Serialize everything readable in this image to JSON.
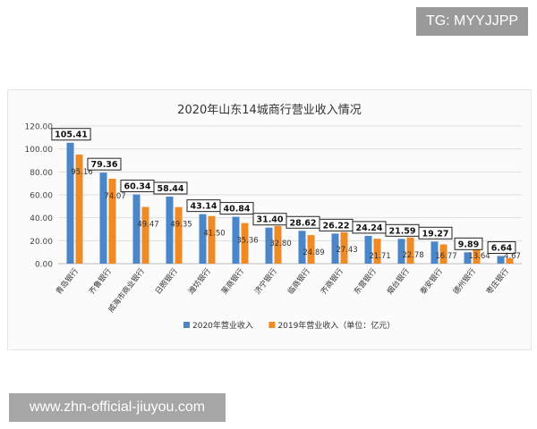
{
  "watermark_top": "TG: MYYJJPP",
  "watermark_bottom": "www.zhn-official-jiuyou.com",
  "chart_data": {
    "type": "bar",
    "title": "2020年山东14城商行营业收入情况",
    "categories": [
      "青岛银行",
      "齐鲁银行",
      "威海市商业银行",
      "日照银行",
      "潍坊银行",
      "莱商银行",
      "济宁银行",
      "临商银行",
      "齐商银行",
      "东营银行",
      "烟台银行",
      "泰安银行",
      "德州银行",
      "枣庄银行"
    ],
    "series": [
      {
        "name": "2020年营业收入",
        "color": "#4a86c8",
        "values": [
          105.41,
          79.36,
          60.34,
          58.44,
          43.14,
          40.84,
          31.4,
          28.62,
          26.22,
          24.24,
          21.59,
          19.27,
          9.89,
          6.64
        ],
        "labels": [
          "105.41",
          "79.36",
          "60.34",
          "58.44",
          "43.14",
          "40.84",
          "31.40",
          "28.62",
          "26.22",
          "24.24",
          "21.59",
          "19.27",
          "9.89",
          "6.64"
        ]
      },
      {
        "name": "2019年营业收入（单位：亿元）",
        "color": "#f08a24",
        "values": [
          95.16,
          74.07,
          49.47,
          49.35,
          41.5,
          35.36,
          32.8,
          24.89,
          27.43,
          21.71,
          22.78,
          16.77,
          13.64,
          4.67
        ],
        "labels": [
          "95.16",
          "74.07",
          "49.47",
          "49.35",
          "41.50",
          "35.36",
          "32.80",
          "24.89",
          "27.43",
          "21.71",
          "22.78",
          "16.77",
          "13.64",
          "4.67"
        ]
      }
    ],
    "yticks": [
      "0.00",
      "20.00",
      "40.00",
      "60.00",
      "80.00",
      "100.00",
      "120.00"
    ],
    "ylim": [
      0,
      120
    ],
    "grid": true,
    "legend_position": "bottom"
  }
}
